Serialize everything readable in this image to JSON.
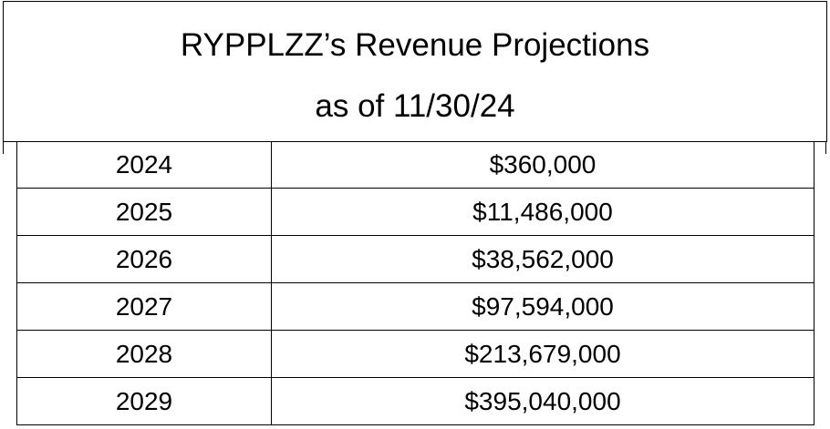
{
  "header": {
    "title": [
      "RYPPLZZ’s Revenue Projections",
      "as of 11/30/24"
    ]
  },
  "table": {
    "rows": [
      [
        "2024",
        "$360,000"
      ],
      [
        "2025",
        "$11,486,000"
      ],
      [
        "2026",
        "$38,562,000"
      ],
      [
        "2027",
        "$97,594,000"
      ],
      [
        "2028",
        "$213,679,000"
      ],
      [
        "2029",
        "$395,040,000"
      ]
    ]
  }
}
